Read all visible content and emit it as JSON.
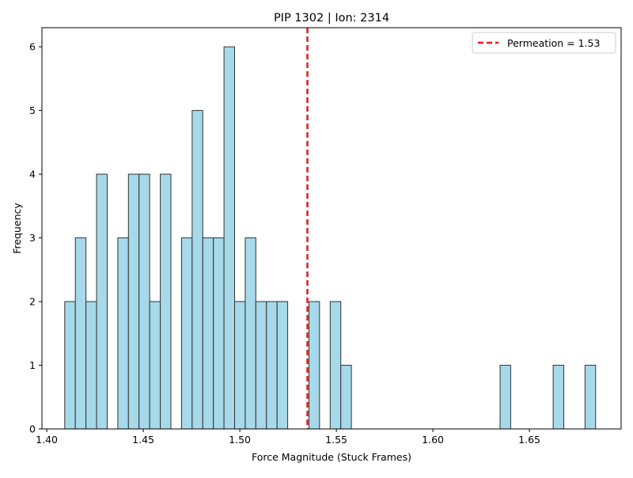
{
  "chart_data": {
    "type": "bar",
    "title": "PIP 1302 | Ion: 2314",
    "xlabel": "Force Magnitude (Stuck Frames)",
    "ylabel": "Frequency",
    "xlim": [
      1.3975,
      1.6975
    ],
    "ylim": [
      0,
      6.3
    ],
    "bin_width": 0.00549,
    "bins": [
      {
        "x0": 1.4093,
        "count": 2
      },
      {
        "x0": 1.4148,
        "count": 3
      },
      {
        "x0": 1.4203,
        "count": 2
      },
      {
        "x0": 1.4258,
        "count": 4
      },
      {
        "x0": 1.4368,
        "count": 3
      },
      {
        "x0": 1.4423,
        "count": 4
      },
      {
        "x0": 1.4478,
        "count": 4
      },
      {
        "x0": 1.4533,
        "count": 2
      },
      {
        "x0": 1.4588,
        "count": 4
      },
      {
        "x0": 1.4698,
        "count": 3
      },
      {
        "x0": 1.4753,
        "count": 5
      },
      {
        "x0": 1.4808,
        "count": 3
      },
      {
        "x0": 1.4863,
        "count": 3
      },
      {
        "x0": 1.4918,
        "count": 6
      },
      {
        "x0": 1.4973,
        "count": 2
      },
      {
        "x0": 1.5028,
        "count": 3
      },
      {
        "x0": 1.5083,
        "count": 2
      },
      {
        "x0": 1.5138,
        "count": 2
      },
      {
        "x0": 1.5193,
        "count": 2
      },
      {
        "x0": 1.5358,
        "count": 2
      },
      {
        "x0": 1.5468,
        "count": 2
      },
      {
        "x0": 1.5523,
        "count": 1
      },
      {
        "x0": 1.6348,
        "count": 1
      },
      {
        "x0": 1.6623,
        "count": 1
      },
      {
        "x0": 1.6788,
        "count": 1
      }
    ],
    "xticks": [
      1.4,
      1.45,
      1.5,
      1.55,
      1.6,
      1.65
    ],
    "xtick_labels": [
      "1.40",
      "1.45",
      "1.50",
      "1.55",
      "1.60",
      "1.65"
    ],
    "yticks": [
      0,
      1,
      2,
      3,
      4,
      5,
      6
    ],
    "ytick_labels": [
      "0",
      "1",
      "2",
      "3",
      "4",
      "5",
      "6"
    ],
    "vline": {
      "x": 1.535,
      "color": "#e31a1c"
    },
    "legend": {
      "position": "upper-right",
      "label": "Permeation = 1.53"
    },
    "bar_color": "#a6d9ea",
    "bar_edge_color": "#333333",
    "grid": false
  }
}
